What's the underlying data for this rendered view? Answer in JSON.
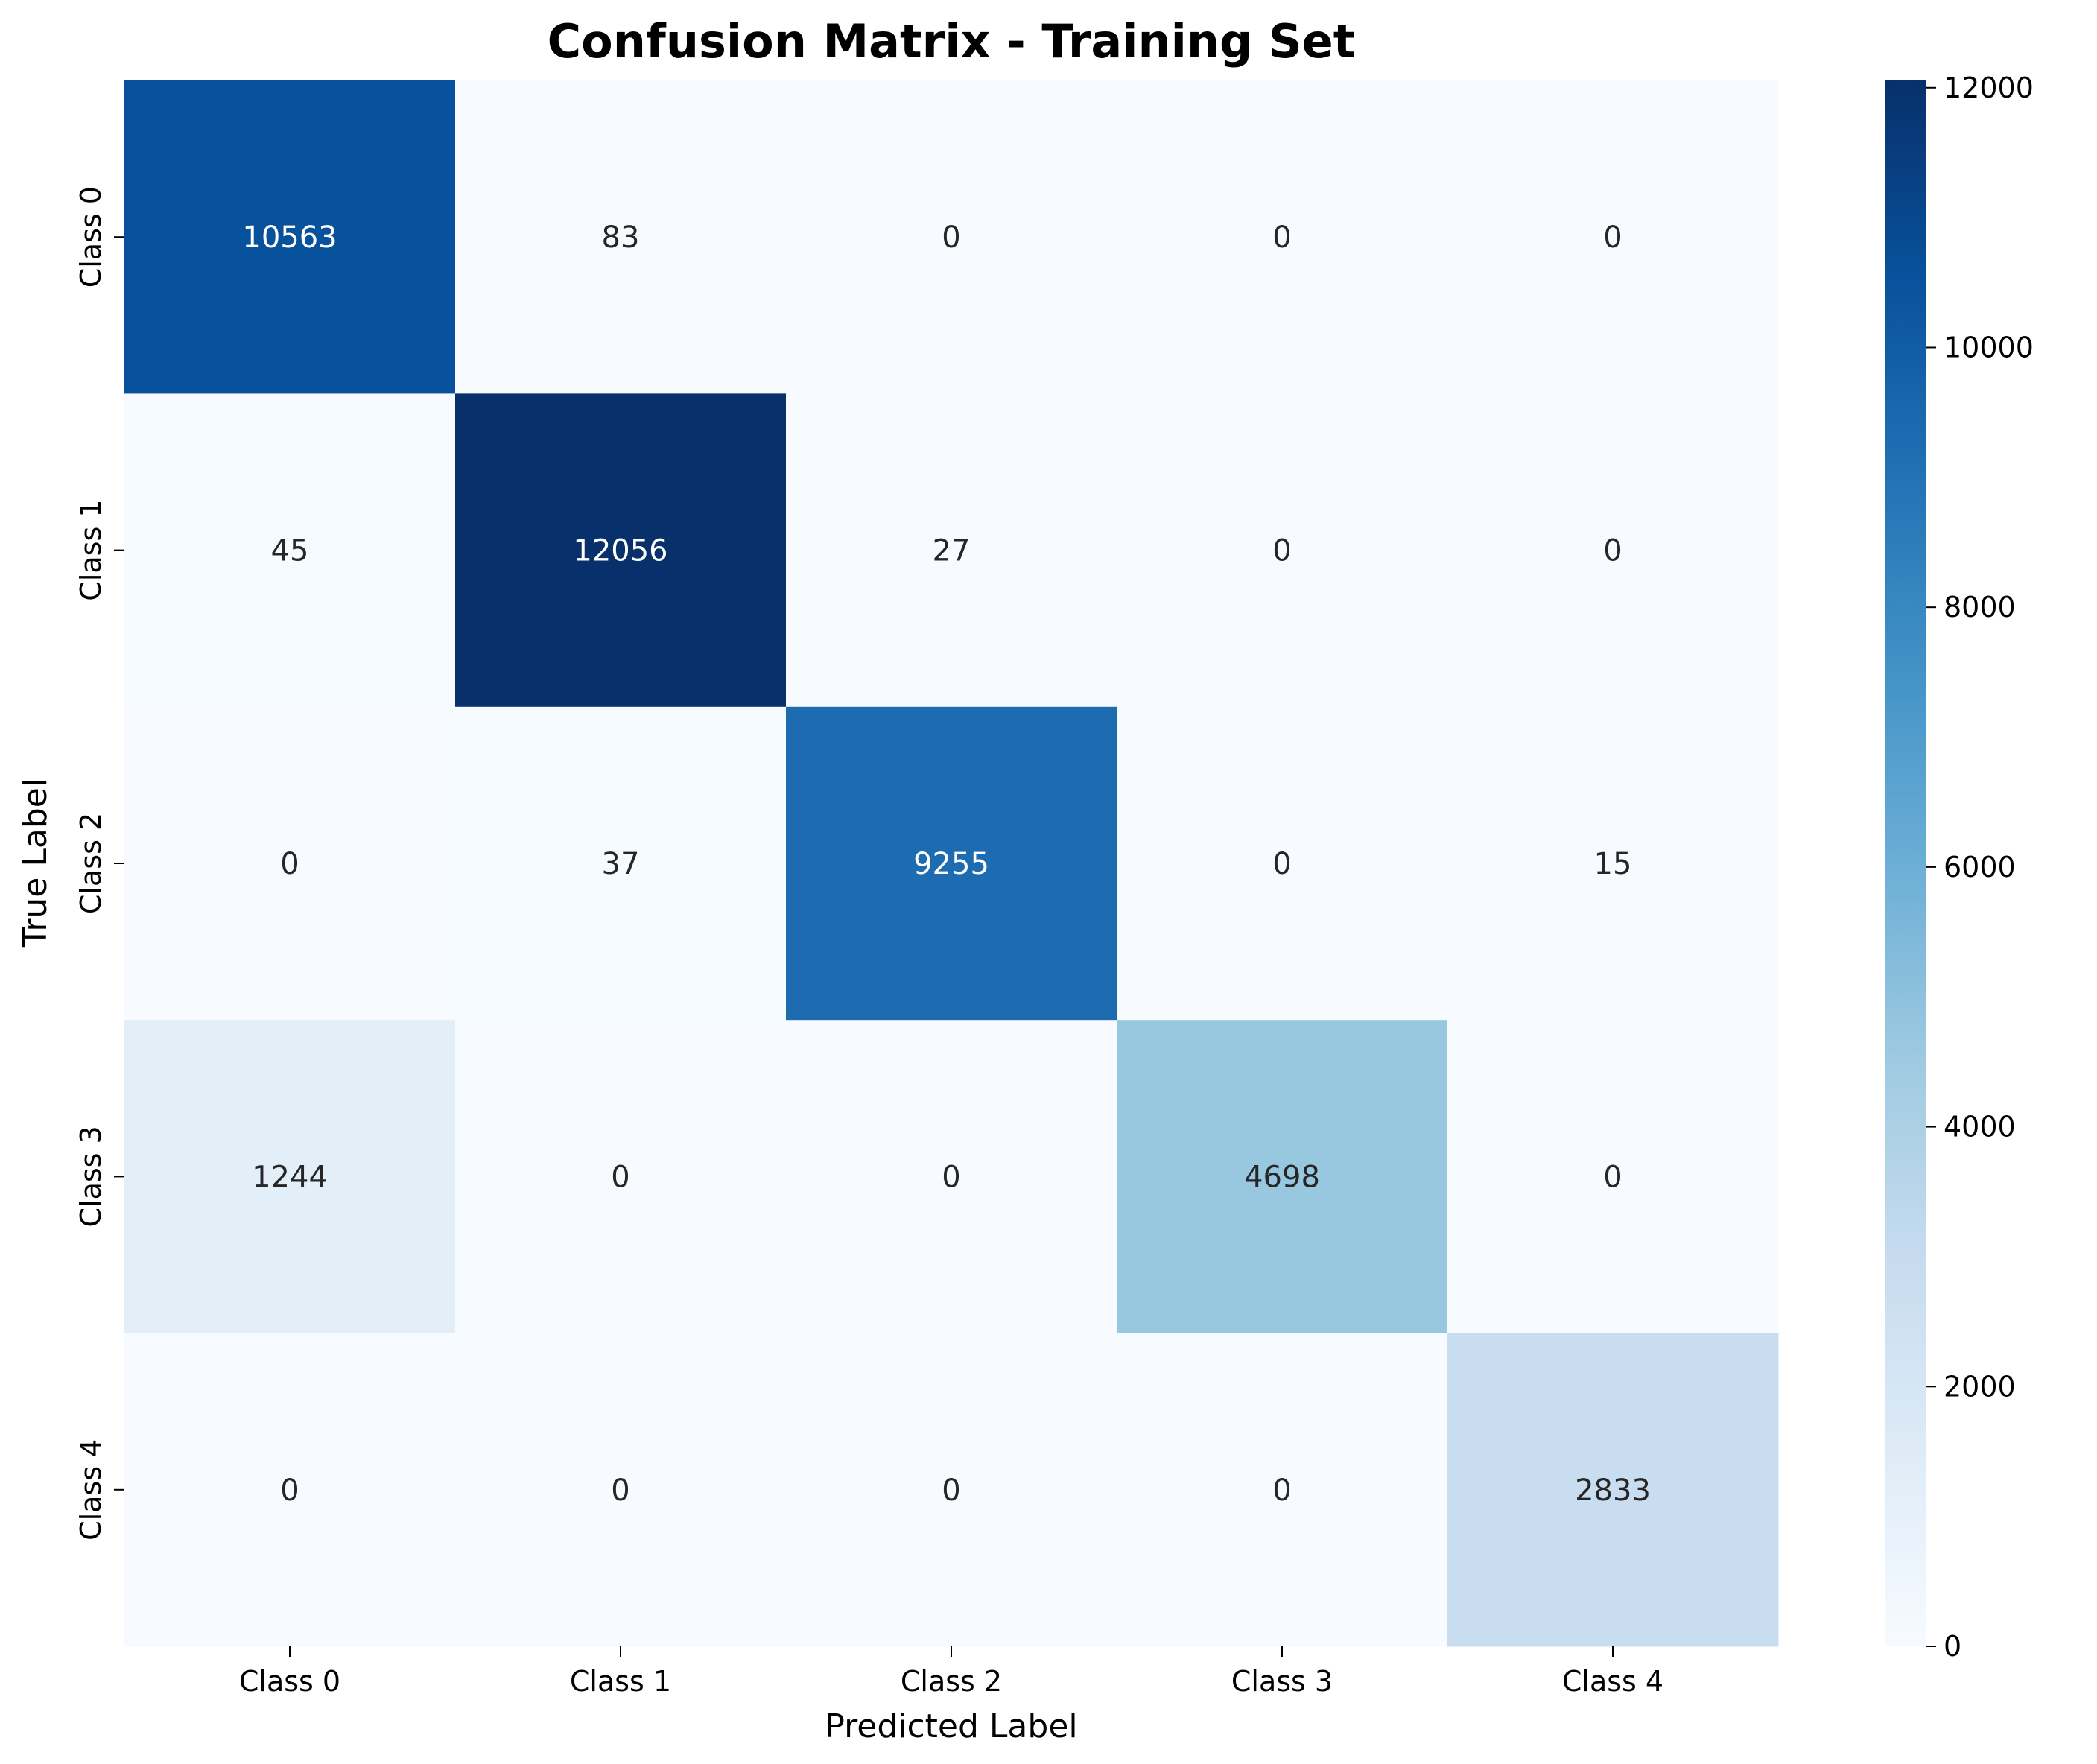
{
  "chart_data": {
    "type": "heatmap",
    "title": "Confusion Matrix - Training Set",
    "xlabel": "Predicted Label",
    "ylabel": "True Label",
    "x_categories": [
      "Class 0",
      "Class 1",
      "Class 2",
      "Class 3",
      "Class 4"
    ],
    "y_categories": [
      "Class 0",
      "Class 1",
      "Class 2",
      "Class 3",
      "Class 4"
    ],
    "values": [
      [
        10563,
        83,
        0,
        0,
        0
      ],
      [
        45,
        12056,
        27,
        0,
        0
      ],
      [
        0,
        37,
        9255,
        0,
        15
      ],
      [
        1244,
        0,
        0,
        4698,
        0
      ],
      [
        0,
        0,
        0,
        0,
        2833
      ]
    ],
    "colormap": "Blues",
    "vmin": 0,
    "vmax": 12056,
    "colorbar_ticks": [
      0,
      2000,
      4000,
      6000,
      8000,
      10000,
      12000
    ],
    "grid": false
  }
}
